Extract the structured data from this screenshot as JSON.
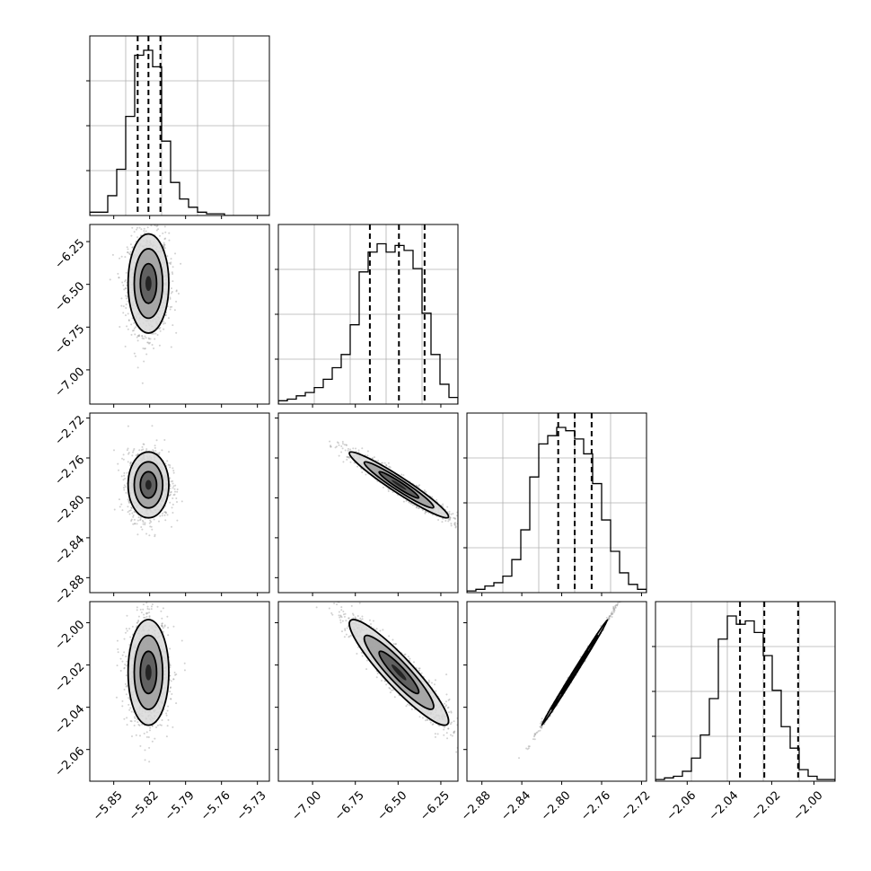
{
  "colors": {
    "background": "#ffffff",
    "axes_edge": "#000000",
    "grid": "#b0b0b0",
    "line": "#000000",
    "scatter": "#9a9a9a",
    "density_light": "#d9d9d9",
    "density_mid": "#9e9e9e",
    "density_dark": "#555555"
  },
  "chart_data": {
    "type": "corner",
    "n_params": 4,
    "quantiles": [
      0.16,
      0.5,
      0.84
    ],
    "grid": true,
    "params": [
      {
        "range": [
          -5.87,
          -5.72
        ],
        "center": -5.821,
        "sigma": 0.0085,
        "quantile_values": [
          -5.83,
          -5.821,
          -5.811
        ],
        "ticks": [
          -5.85,
          -5.82,
          -5.79,
          -5.76,
          -5.73
        ],
        "tick_labels": [
          "−5.85",
          "−5.82",
          "−5.79",
          "−5.76",
          "−5.73"
        ]
      },
      {
        "range": [
          -7.2,
          -6.15
        ],
        "center": -6.495,
        "sigma": 0.145,
        "quantile_values": [
          -6.665,
          -6.495,
          -6.345
        ],
        "ticks": [
          -7.0,
          -6.75,
          -6.5,
          -6.25
        ],
        "tick_labels": [
          "−7.00",
          "−6.75",
          "−6.50",
          "−6.25"
        ]
      },
      {
        "range": [
          -2.895,
          -2.715
        ],
        "center": -2.787,
        "sigma": 0.0165,
        "quantile_values": [
          -2.8035,
          -2.787,
          -2.77
        ],
        "ticks": [
          -2.88,
          -2.84,
          -2.8,
          -2.76,
          -2.72
        ],
        "tick_labels": [
          "−2.88",
          "−2.84",
          "−2.80",
          "−2.76",
          "−2.72"
        ]
      },
      {
        "range": [
          -2.075,
          -1.99
        ],
        "center": -2.0235,
        "sigma": 0.0125,
        "quantile_values": [
          -2.035,
          -2.0235,
          -2.0075
        ],
        "ticks": [
          -2.06,
          -2.04,
          -2.02,
          -2.0
        ],
        "tick_labels": [
          "−2.06",
          "−2.04",
          "−2.02",
          "−2.00"
        ]
      }
    ],
    "histograms": [
      {
        "param": 0,
        "counts": [
          0.02,
          0.02,
          0.12,
          0.28,
          0.6,
          0.97,
          1.0,
          0.9,
          0.45,
          0.2,
          0.1,
          0.05,
          0.02,
          0.01,
          0.01,
          0,
          0,
          0,
          0,
          0
        ]
      },
      {
        "param": 1,
        "counts": [
          0.02,
          0.03,
          0.05,
          0.07,
          0.1,
          0.15,
          0.22,
          0.3,
          0.48,
          0.8,
          0.92,
          0.97,
          0.92,
          0.96,
          0.93,
          0.82,
          0.55,
          0.3,
          0.12,
          0.04
        ]
      },
      {
        "param": 2,
        "counts": [
          0.01,
          0.02,
          0.04,
          0.06,
          0.1,
          0.2,
          0.38,
          0.7,
          0.9,
          0.95,
          1.0,
          0.98,
          0.93,
          0.84,
          0.66,
          0.44,
          0.25,
          0.12,
          0.05,
          0.02
        ]
      },
      {
        "param": 3,
        "counts": [
          0.01,
          0.02,
          0.03,
          0.06,
          0.14,
          0.28,
          0.5,
          0.86,
          1.0,
          0.95,
          0.97,
          0.9,
          0.76,
          0.55,
          0.33,
          0.2,
          0.07,
          0.03,
          0.01,
          0.01
        ]
      }
    ],
    "pairs": [
      {
        "x_param": 0,
        "y_param": 1,
        "correlation": 0.0
      },
      {
        "x_param": 0,
        "y_param": 2,
        "correlation": 0.0
      },
      {
        "x_param": 1,
        "y_param": 2,
        "correlation": -0.96
      },
      {
        "x_param": 0,
        "y_param": 3,
        "correlation": 0.0
      },
      {
        "x_param": 1,
        "y_param": 3,
        "correlation": -0.92
      },
      {
        "x_param": 2,
        "y_param": 3,
        "correlation": 0.998
      }
    ]
  }
}
